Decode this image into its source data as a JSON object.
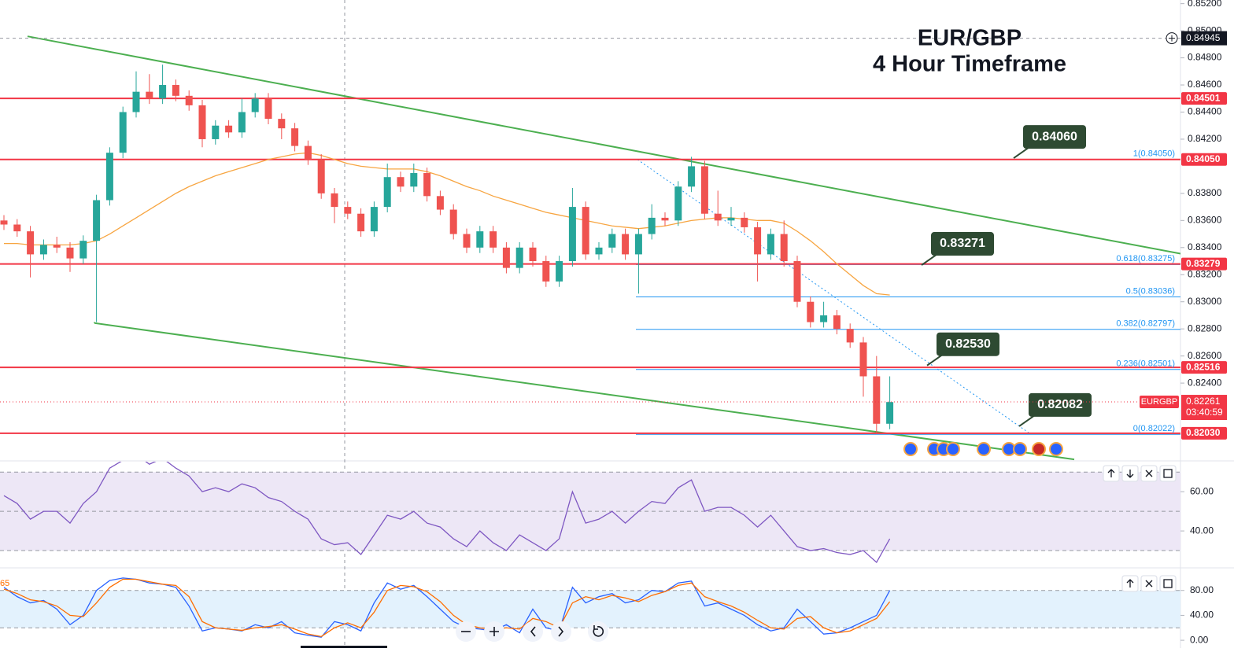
{
  "chart_data": [
    {
      "type": "candlestick",
      "title": "EUR/GBP",
      "subtitle": "4 Hour Timeframe",
      "ylim": [
        0.81826,
        0.85227
      ],
      "yticks": [
        {
          "value": 0.852,
          "label": "0.85200"
        },
        {
          "value": 0.85,
          "label": "0.85000"
        },
        {
          "value": 0.848,
          "label": "0.84800"
        },
        {
          "value": 0.846,
          "label": "0.84600"
        },
        {
          "value": 0.844,
          "label": "0.84400"
        },
        {
          "value": 0.842,
          "label": "0.84200"
        },
        {
          "value": 0.838,
          "label": "0.83800"
        },
        {
          "value": 0.836,
          "label": "0.83600"
        },
        {
          "value": 0.834,
          "label": "0.83400"
        },
        {
          "value": 0.832,
          "label": "0.83200"
        },
        {
          "value": 0.83,
          "label": "0.83000"
        },
        {
          "value": 0.828,
          "label": "0.82800"
        },
        {
          "value": 0.826,
          "label": "0.82600"
        },
        {
          "value": 0.824,
          "label": "0.82400"
        }
      ],
      "up_color": "#26a69a",
      "down_color": "#ef5350",
      "ma_color": "#f7a541",
      "level_color": "#f23645",
      "fib_color": "#2196f3",
      "trend_color": "#4caf50",
      "callout_color": "#2e4a32",
      "open": [
        0.836,
        0.8357,
        0.8352,
        0.8335,
        0.8342,
        0.834,
        0.8332,
        0.8345,
        0.8375,
        0.841,
        0.844,
        0.8455,
        0.845,
        0.846,
        0.8452,
        0.8445,
        0.842,
        0.843,
        0.8425,
        0.844,
        0.845,
        0.8435,
        0.8428,
        0.8415,
        0.8405,
        0.838,
        0.837,
        0.8365,
        0.8352,
        0.837,
        0.8392,
        0.8385,
        0.8395,
        0.8378,
        0.8368,
        0.835,
        0.834,
        0.8352,
        0.834,
        0.8325,
        0.834,
        0.833,
        0.8315,
        0.833,
        0.837,
        0.8335,
        0.834,
        0.835,
        0.8335,
        0.835,
        0.8362,
        0.836,
        0.8385,
        0.84,
        0.8365,
        0.836,
        0.8362,
        0.8355,
        0.8335,
        0.835,
        0.833,
        0.83,
        0.8285,
        0.829,
        0.828,
        0.827,
        0.8245,
        0.821
      ],
      "high": [
        0.8364,
        0.8361,
        0.8356,
        0.8346,
        0.8348,
        0.8344,
        0.8349,
        0.8379,
        0.8414,
        0.8444,
        0.847,
        0.8468,
        0.8475,
        0.8464,
        0.8456,
        0.8449,
        0.8434,
        0.8434,
        0.845,
        0.8454,
        0.8454,
        0.8439,
        0.8432,
        0.8419,
        0.8409,
        0.8384,
        0.8374,
        0.8369,
        0.8374,
        0.8402,
        0.8396,
        0.8402,
        0.8399,
        0.8382,
        0.8372,
        0.8354,
        0.8356,
        0.8356,
        0.8344,
        0.8344,
        0.8344,
        0.8334,
        0.8334,
        0.8384,
        0.8374,
        0.8344,
        0.8354,
        0.8354,
        0.8354,
        0.8372,
        0.8366,
        0.8389,
        0.8407,
        0.8404,
        0.8382,
        0.837,
        0.8366,
        0.8359,
        0.8354,
        0.836,
        0.8334,
        0.8304,
        0.83,
        0.8294,
        0.8284,
        0.8274,
        0.826,
        0.8245
      ],
      "low": [
        0.8353,
        0.8348,
        0.8318,
        0.8331,
        0.8336,
        0.8322,
        0.8328,
        0.8285,
        0.8371,
        0.8406,
        0.8436,
        0.8446,
        0.8446,
        0.8448,
        0.8441,
        0.8414,
        0.8416,
        0.8421,
        0.8421,
        0.8436,
        0.8431,
        0.842,
        0.8411,
        0.8401,
        0.8376,
        0.8358,
        0.8361,
        0.8348,
        0.8348,
        0.8366,
        0.8381,
        0.8381,
        0.8374,
        0.8364,
        0.8346,
        0.8336,
        0.8336,
        0.8336,
        0.8321,
        0.8321,
        0.8326,
        0.8311,
        0.8311,
        0.8326,
        0.8331,
        0.8331,
        0.8336,
        0.8331,
        0.8306,
        0.8346,
        0.8356,
        0.8356,
        0.8381,
        0.8361,
        0.8356,
        0.8356,
        0.8351,
        0.8315,
        0.8331,
        0.8326,
        0.8296,
        0.8281,
        0.8281,
        0.8276,
        0.8266,
        0.823,
        0.8203,
        0.8206
      ],
      "close": [
        0.8357,
        0.8352,
        0.8335,
        0.8342,
        0.834,
        0.8332,
        0.8345,
        0.8375,
        0.841,
        0.844,
        0.8455,
        0.845,
        0.846,
        0.8452,
        0.8445,
        0.842,
        0.843,
        0.8425,
        0.844,
        0.845,
        0.8435,
        0.8428,
        0.8415,
        0.8405,
        0.838,
        0.837,
        0.8365,
        0.8352,
        0.837,
        0.8392,
        0.8385,
        0.8395,
        0.8378,
        0.8368,
        0.835,
        0.834,
        0.8352,
        0.834,
        0.8325,
        0.834,
        0.833,
        0.8315,
        0.833,
        0.837,
        0.8335,
        0.834,
        0.835,
        0.8335,
        0.835,
        0.8362,
        0.836,
        0.8385,
        0.84,
        0.8365,
        0.836,
        0.8362,
        0.8355,
        0.8335,
        0.835,
        0.833,
        0.83,
        0.8285,
        0.829,
        0.828,
        0.827,
        0.8245,
        0.821,
        0.8226
      ],
      "ma": [
        0.8343,
        0.8343,
        0.8342,
        0.8342,
        0.8342,
        0.8342,
        0.8343,
        0.8345,
        0.835,
        0.8356,
        0.8362,
        0.8368,
        0.8374,
        0.838,
        0.8385,
        0.8389,
        0.8393,
        0.8396,
        0.8399,
        0.8402,
        0.8405,
        0.8407,
        0.8409,
        0.841,
        0.8408,
        0.8405,
        0.8402,
        0.84,
        0.8399,
        0.8398,
        0.8398,
        0.8398,
        0.8396,
        0.8393,
        0.8389,
        0.8385,
        0.8382,
        0.8378,
        0.8375,
        0.8372,
        0.8369,
        0.8366,
        0.8364,
        0.8362,
        0.836,
        0.8358,
        0.8356,
        0.8355,
        0.8354,
        0.8355,
        0.8356,
        0.8358,
        0.836,
        0.8361,
        0.8362,
        0.8362,
        0.8361,
        0.836,
        0.836,
        0.8358,
        0.8352,
        0.8345,
        0.8337,
        0.8328,
        0.832,
        0.8312,
        0.8306,
        0.8305
      ],
      "levels": [
        {
          "value": 0.84501,
          "label": "0.84501"
        },
        {
          "value": 0.8405,
          "label": "0.84050"
        },
        {
          "value": 0.83279,
          "label": "0.83279"
        },
        {
          "value": 0.82516,
          "label": "0.82516"
        },
        {
          "value": 0.8203,
          "label": "0.82030"
        }
      ],
      "fib": [
        {
          "value": 0.8405,
          "label": "1(0.84050)"
        },
        {
          "value": 0.83275,
          "label": "0.618(0.83275)"
        },
        {
          "value": 0.83036,
          "label": "0.5(0.83036)"
        },
        {
          "value": 0.82797,
          "label": "0.382(0.82797)"
        },
        {
          "value": 0.82501,
          "label": "0.236(0.82501)"
        },
        {
          "value": 0.82022,
          "label": "0(0.82022)"
        }
      ],
      "callouts": [
        {
          "value": 0.8406,
          "label": "0.84060"
        },
        {
          "value": 0.83271,
          "label": "0.83271"
        },
        {
          "value": 0.8253,
          "label": "0.82530"
        },
        {
          "value": 0.82082,
          "label": "0.82082"
        }
      ],
      "trendlines": [
        {
          "values": [
            0.84959,
            0.83355
          ]
        },
        {
          "values": [
            0.82843,
            0.81837
          ]
        }
      ],
      "last": {
        "value": 0.82261,
        "label": "0.82261"
      },
      "symbol": "EURGBP",
      "countdown": "03:40:59",
      "crosshair": {
        "value": 0.84945,
        "label": "0.84945"
      }
    },
    {
      "type": "line",
      "ylim": [
        21.6,
        75.3
      ],
      "yticks": [
        {
          "value": 60,
          "label": "60.00"
        },
        {
          "value": 40,
          "label": "40.00"
        }
      ],
      "bands": [
        30,
        50,
        70
      ],
      "color": "#7e57c2",
      "band_color": "#ede7f6",
      "values": [
        58,
        54,
        46,
        50,
        50,
        44,
        54,
        60,
        72,
        76,
        79,
        74,
        77,
        72,
        68,
        60,
        62,
        60,
        64,
        62,
        57,
        55,
        50,
        46,
        36,
        33,
        34,
        28,
        38,
        48,
        46,
        50,
        44,
        42,
        36,
        32,
        40,
        34,
        30,
        38,
        34,
        30,
        36,
        60,
        44,
        46,
        50,
        44,
        50,
        55,
        54,
        62,
        66,
        50,
        52,
        52,
        48,
        42,
        48,
        40,
        32,
        30,
        31,
        29,
        28,
        30,
        24,
        36
      ]
    },
    {
      "type": "line",
      "ylim": [
        -12.5,
        115
      ],
      "yticks": [
        {
          "value": 80,
          "label": "80.00"
        },
        {
          "value": 40,
          "label": "40.00"
        },
        {
          "value": 0,
          "label": "0.00"
        }
      ],
      "bands": [
        20,
        80
      ],
      "band_color": "#e3f2fd",
      "edge_label": "65",
      "series": [
        {
          "color": "#2962ff",
          "values": [
            85,
            70,
            60,
            64,
            50,
            25,
            40,
            80,
            96,
            100,
            98,
            92,
            90,
            85,
            55,
            15,
            20,
            18,
            15,
            25,
            20,
            30,
            12,
            8,
            5,
            30,
            25,
            15,
            60,
            92,
            82,
            88,
            70,
            50,
            30,
            20,
            18,
            15,
            25,
            12,
            50,
            20,
            15,
            85,
            60,
            70,
            75,
            60,
            65,
            80,
            78,
            92,
            95,
            55,
            60,
            50,
            40,
            25,
            15,
            20,
            50,
            30,
            10,
            12,
            20,
            30,
            40,
            80
          ]
        },
        {
          "color": "#ff6d00",
          "values": [
            82,
            75,
            65,
            62,
            55,
            40,
            38,
            60,
            85,
            98,
            98,
            94,
            90,
            88,
            70,
            30,
            20,
            18,
            16,
            20,
            22,
            25,
            18,
            10,
            6,
            20,
            28,
            20,
            45,
            80,
            88,
            86,
            78,
            62,
            40,
            25,
            20,
            17,
            20,
            18,
            35,
            30,
            20,
            60,
            70,
            65,
            72,
            68,
            62,
            72,
            78,
            88,
            92,
            70,
            62,
            55,
            45,
            32,
            20,
            18,
            35,
            38,
            20,
            12,
            15,
            25,
            35,
            62
          ]
        }
      ]
    }
  ]
}
